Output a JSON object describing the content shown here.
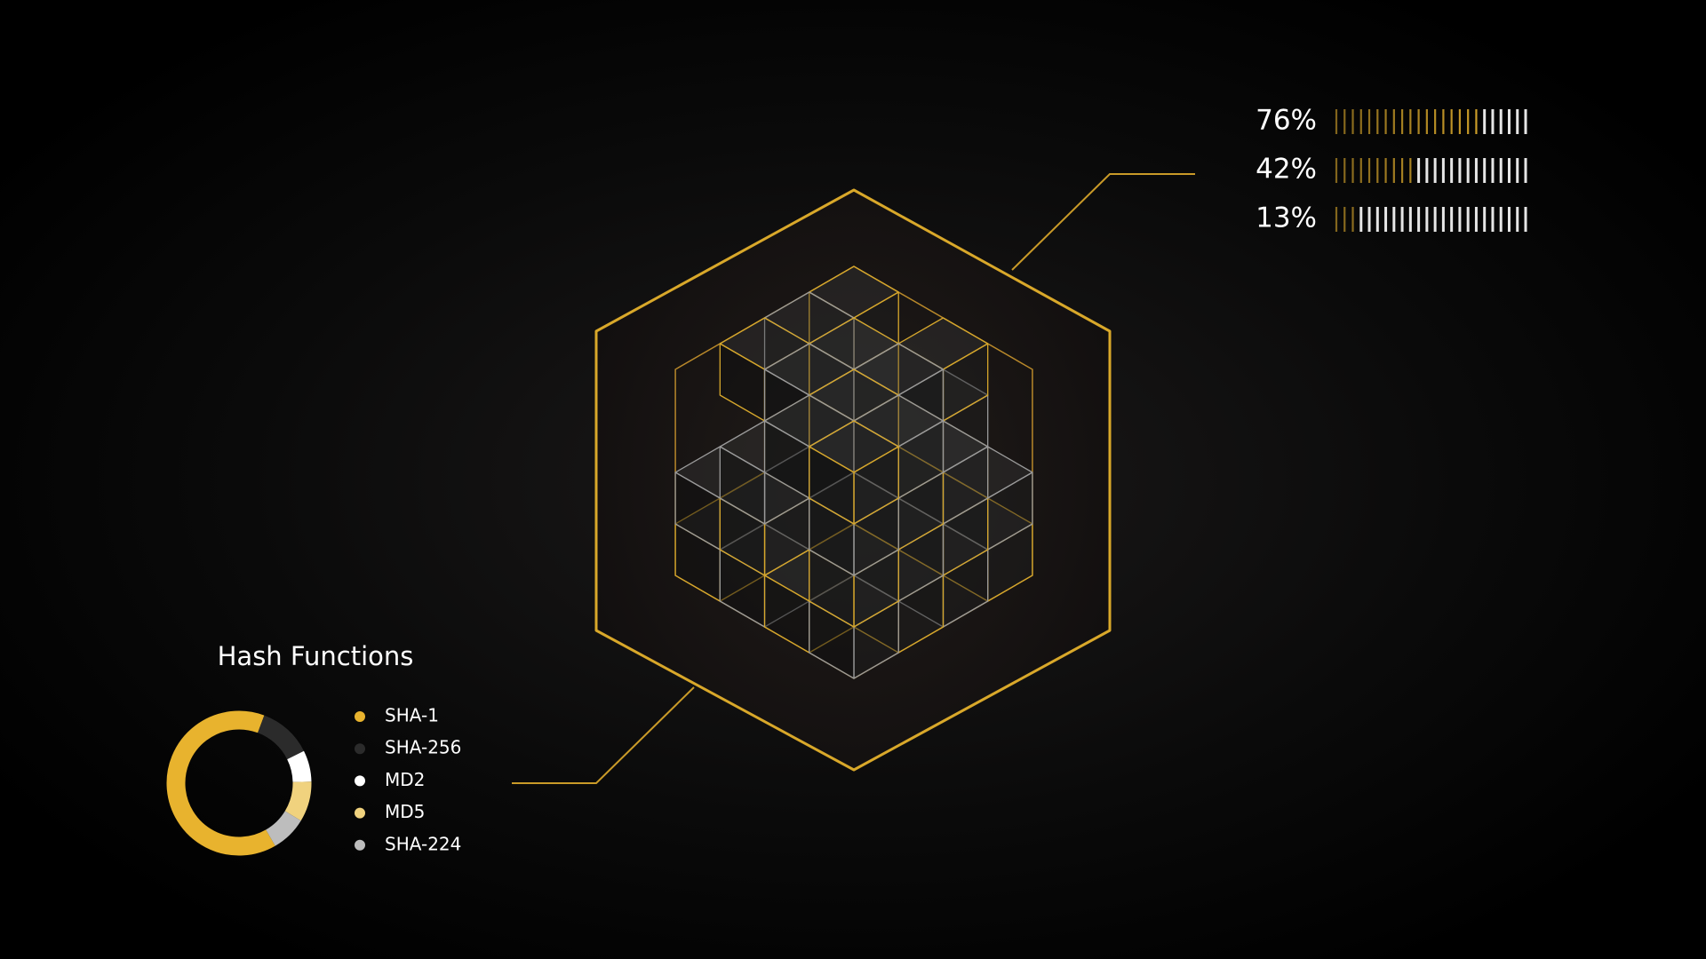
{
  "chart_data": [
    {
      "type": "pie",
      "title": "Hash Functions",
      "categories": [
        "SHA-1",
        "SHA-256",
        "MD2",
        "MD5",
        "SHA-224"
      ],
      "values": [
        64,
        12,
        7,
        9,
        8
      ],
      "colors": [
        "#e8b32e",
        "#2b2b2b",
        "#ffffff",
        "#f0d27e",
        "#bdbdbd"
      ],
      "donut": true
    },
    {
      "type": "meter",
      "values": [
        76,
        42,
        13
      ],
      "value_labels": [
        "76%",
        "42%",
        "13%"
      ],
      "xlim": [
        0,
        100
      ],
      "color": "#e8b32e"
    }
  ]
}
